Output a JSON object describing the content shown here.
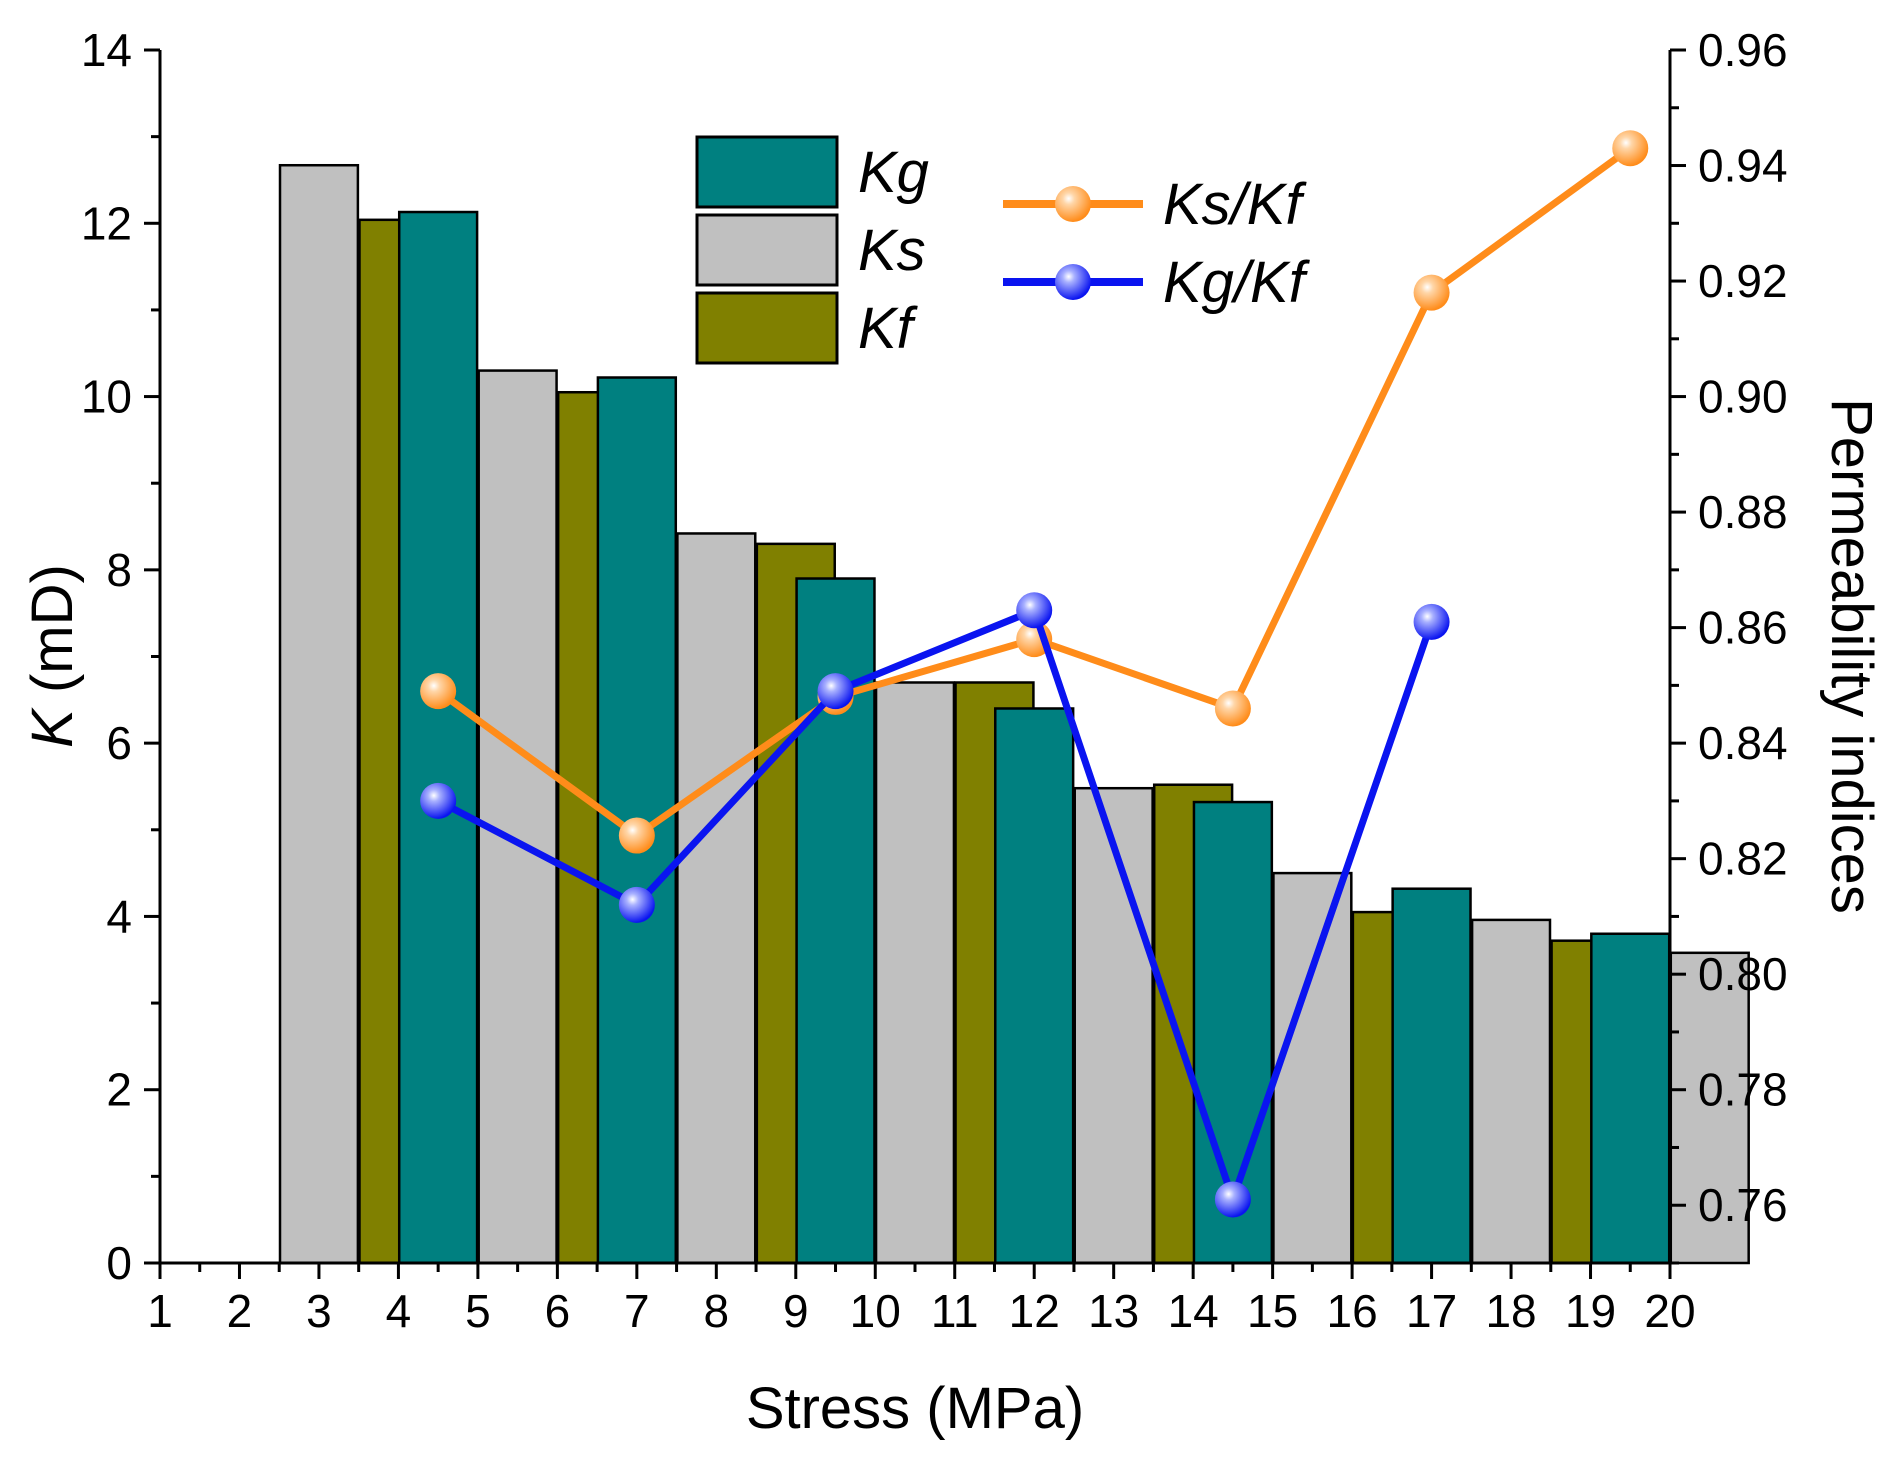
{
  "chart_data": {
    "type": "bar",
    "xlabel": "Stress (MPa)",
    "ylabel_italic": "K",
    "ylabel_rest": " (mD)",
    "y2label": "Permeability indices",
    "xlim": [
      1,
      20
    ],
    "ylim": [
      0,
      14
    ],
    "y2lim": [
      0.75,
      0.96
    ],
    "x_ticks": [
      "1",
      "2",
      "3",
      "4",
      "5",
      "6",
      "7",
      "8",
      "9",
      "10",
      "11",
      "12",
      "13",
      "14",
      "15",
      "16",
      "17",
      "18",
      "19",
      "20"
    ],
    "y_ticks": [
      "0",
      "2",
      "4",
      "6",
      "8",
      "10",
      "12",
      "14"
    ],
    "y2_ticks": [
      "0.76",
      "0.78",
      "0.80",
      "0.82",
      "0.84",
      "0.86",
      "0.88",
      "0.90",
      "0.92",
      "0.94",
      "0.96"
    ],
    "bar_groups": [
      {
        "Kg": null,
        "Ks": 12.67,
        "Kf": 12.04
      },
      {
        "Kg": 12.13,
        "Ks": 10.3,
        "Kf": 10.05
      },
      {
        "Kg": 10.22,
        "Ks": 8.42,
        "Kf": 8.3
      },
      {
        "Kg": 7.9,
        "Ks": 6.7,
        "Kf": 6.7
      },
      {
        "Kg": 6.4,
        "Ks": 5.48,
        "Kf": 5.52
      },
      {
        "Kg": 5.32,
        "Ks": 4.5,
        "Kf": 4.05
      },
      {
        "Kg": 4.32,
        "Ks": 3.96,
        "Kf": 3.72
      },
      {
        "Kg": 3.8,
        "Ks": 3.58,
        "Kf": null
      }
    ],
    "bar_series": [
      {
        "name": "Kg",
        "color": "#008080"
      },
      {
        "name": "Ks",
        "color": "#C0C0C0"
      },
      {
        "name": "Kf",
        "color": "#808000"
      }
    ],
    "line_series": [
      {
        "name": "Ks/Kf",
        "color": "#FF8C1A",
        "x": [
          4.5,
          7.0,
          9.5,
          12.0,
          14.5,
          17.0,
          19.5
        ],
        "y": [
          0.849,
          0.824,
          0.848,
          0.858,
          0.846,
          0.918,
          0.943
        ]
      },
      {
        "name": "Kg/Kf",
        "color": "#0A14F0",
        "x": [
          4.5,
          7.0,
          9.5,
          12.0,
          14.5,
          17.0
        ],
        "y": [
          0.83,
          0.812,
          0.849,
          0.863,
          0.761,
          0.861
        ]
      }
    ]
  }
}
